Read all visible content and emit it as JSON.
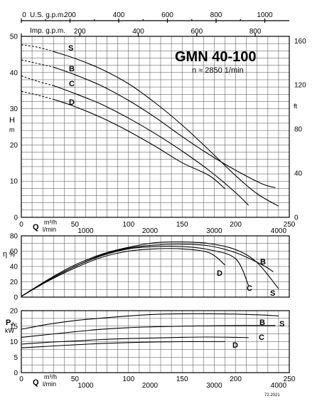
{
  "chart_data": [
    {
      "type": "line",
      "name": "head",
      "title": "GMN 40-100",
      "subtitle": "n ≈ 2850 1/min",
      "ylabel": "H",
      "yunit": "m",
      "ylabel_right": "ft",
      "xlabel": "Q",
      "xunit_top": "m³/h",
      "xunit_bottom": "l/min",
      "xlim": [
        0,
        250
      ],
      "ylim": [
        0,
        50
      ],
      "x_ticks": [
        0,
        50,
        100,
        150,
        200,
        250
      ],
      "x_ticks_lmin": [
        1000,
        2000,
        3000,
        4000
      ],
      "y_ticks": [
        0,
        10,
        20,
        30,
        40,
        50
      ],
      "y_ticks_ft": [
        0,
        40,
        80,
        120,
        160
      ],
      "usgpm_label": "U.S. g.p.m.",
      "usgpm_ticks": [
        0,
        200,
        400,
        600,
        800,
        1000
      ],
      "impgpm_label": "Imp. g.p.m.",
      "impgpm_ticks": [
        0,
        200,
        400,
        600,
        800
      ],
      "series": [
        {
          "name": "S",
          "x": [
            0,
            15,
            30,
            50,
            75,
            100,
            125,
            150,
            175,
            200,
            220,
            240
          ],
          "y": [
            47.7,
            47,
            45.8,
            43.9,
            40.9,
            36.9,
            31.6,
            25.5,
            18.6,
            11.5,
            6.5,
            3.1
          ]
        },
        {
          "name": "B",
          "x": [
            0,
            15,
            30,
            50,
            75,
            100,
            125,
            150,
            175,
            200,
            225,
            237
          ],
          "y": [
            43.5,
            42.5,
            41.5,
            39.4,
            36.3,
            32.3,
            27.6,
            22.3,
            17.4,
            13,
            9.2,
            8.2
          ]
        },
        {
          "name": "C",
          "x": [
            0,
            15,
            30,
            50,
            75,
            100,
            125,
            150,
            175,
            200,
            212
          ],
          "y": [
            39.1,
            37.6,
            36.4,
            34.2,
            31.2,
            27.4,
            23.1,
            18.3,
            13,
            6.8,
            3.3
          ]
        },
        {
          "name": "D",
          "x": [
            0,
            15,
            30,
            50,
            75,
            100,
            125,
            150,
            175,
            190
          ],
          "y": [
            34.8,
            33.8,
            32.6,
            30.6,
            27.5,
            23.8,
            19.6,
            15.1,
            11.6,
            7.9
          ]
        }
      ],
      "extrapolated_to_x": 30
    },
    {
      "type": "line",
      "name": "efficiency",
      "ylabel": "η",
      "yunit": "%",
      "xlim": [
        0,
        250
      ],
      "ylim": [
        0,
        80
      ],
      "y_ticks": [
        0,
        20,
        40,
        60,
        80
      ],
      "series": [
        {
          "name": "S",
          "x": [
            0,
            25,
            50,
            75,
            100,
            125,
            150,
            175,
            200,
            220,
            240
          ],
          "y": [
            1,
            23,
            42,
            56,
            65,
            71,
            72,
            70,
            62,
            45,
            11
          ]
        },
        {
          "name": "B",
          "x": [
            0,
            25,
            50,
            75,
            100,
            125,
            150,
            175,
            200,
            225,
            235
          ],
          "y": [
            1,
            22,
            40,
            55,
            64,
            68,
            69,
            67,
            58,
            42,
            33
          ]
        },
        {
          "name": "C",
          "x": [
            0,
            25,
            50,
            75,
            100,
            125,
            150,
            175,
            200,
            212
          ],
          "y": [
            1,
            22,
            40,
            54,
            63,
            66,
            66,
            62,
            50,
            15
          ]
        },
        {
          "name": "D",
          "x": [
            0,
            25,
            50,
            75,
            100,
            125,
            150,
            175,
            190
          ],
          "y": [
            1,
            21,
            38,
            52,
            60,
            63,
            63,
            58,
            42
          ]
        }
      ]
    },
    {
      "type": "line",
      "name": "power",
      "ylabel": "P₂",
      "yunit": "kW",
      "xlabel": "Q",
      "xunit_top": "m³/h",
      "xunit_bottom": "l/min",
      "xlim": [
        0,
        250
      ],
      "ylim": [
        0,
        20
      ],
      "x_ticks": [
        0,
        50,
        100,
        150,
        200,
        250
      ],
      "x_ticks_lmin": [
        1000,
        2000,
        3000,
        4000
      ],
      "y_ticks": [
        0,
        5,
        10,
        15,
        20
      ],
      "series": [
        {
          "name": "S",
          "x": [
            0,
            25,
            50,
            75,
            100,
            125,
            150,
            175,
            200,
            225,
            240
          ],
          "y": [
            14,
            15.6,
            16.8,
            17.6,
            18.3,
            18.8,
            19,
            19,
            18.9,
            18.6,
            18.3
          ]
        },
        {
          "name": "B",
          "x": [
            0,
            25,
            50,
            75,
            100,
            125,
            150,
            175,
            200,
            225,
            237
          ],
          "y": [
            11.4,
            12.3,
            13.2,
            14,
            14.5,
            14.8,
            15,
            15.1,
            15.2,
            15.2,
            15.2
          ]
        },
        {
          "name": "C",
          "x": [
            0,
            25,
            50,
            75,
            100,
            125,
            150,
            175,
            200,
            212
          ],
          "y": [
            9.2,
            9.8,
            10.2,
            10.7,
            11,
            11.2,
            11.4,
            11.5,
            11.4,
            11.3
          ]
        },
        {
          "name": "D",
          "x": [
            0,
            25,
            50,
            75,
            100,
            125,
            150,
            175,
            190
          ],
          "y": [
            8,
            8.5,
            9,
            9.4,
            9.7,
            9.9,
            10,
            10,
            10
          ]
        }
      ]
    }
  ],
  "footnote": "72.2021"
}
